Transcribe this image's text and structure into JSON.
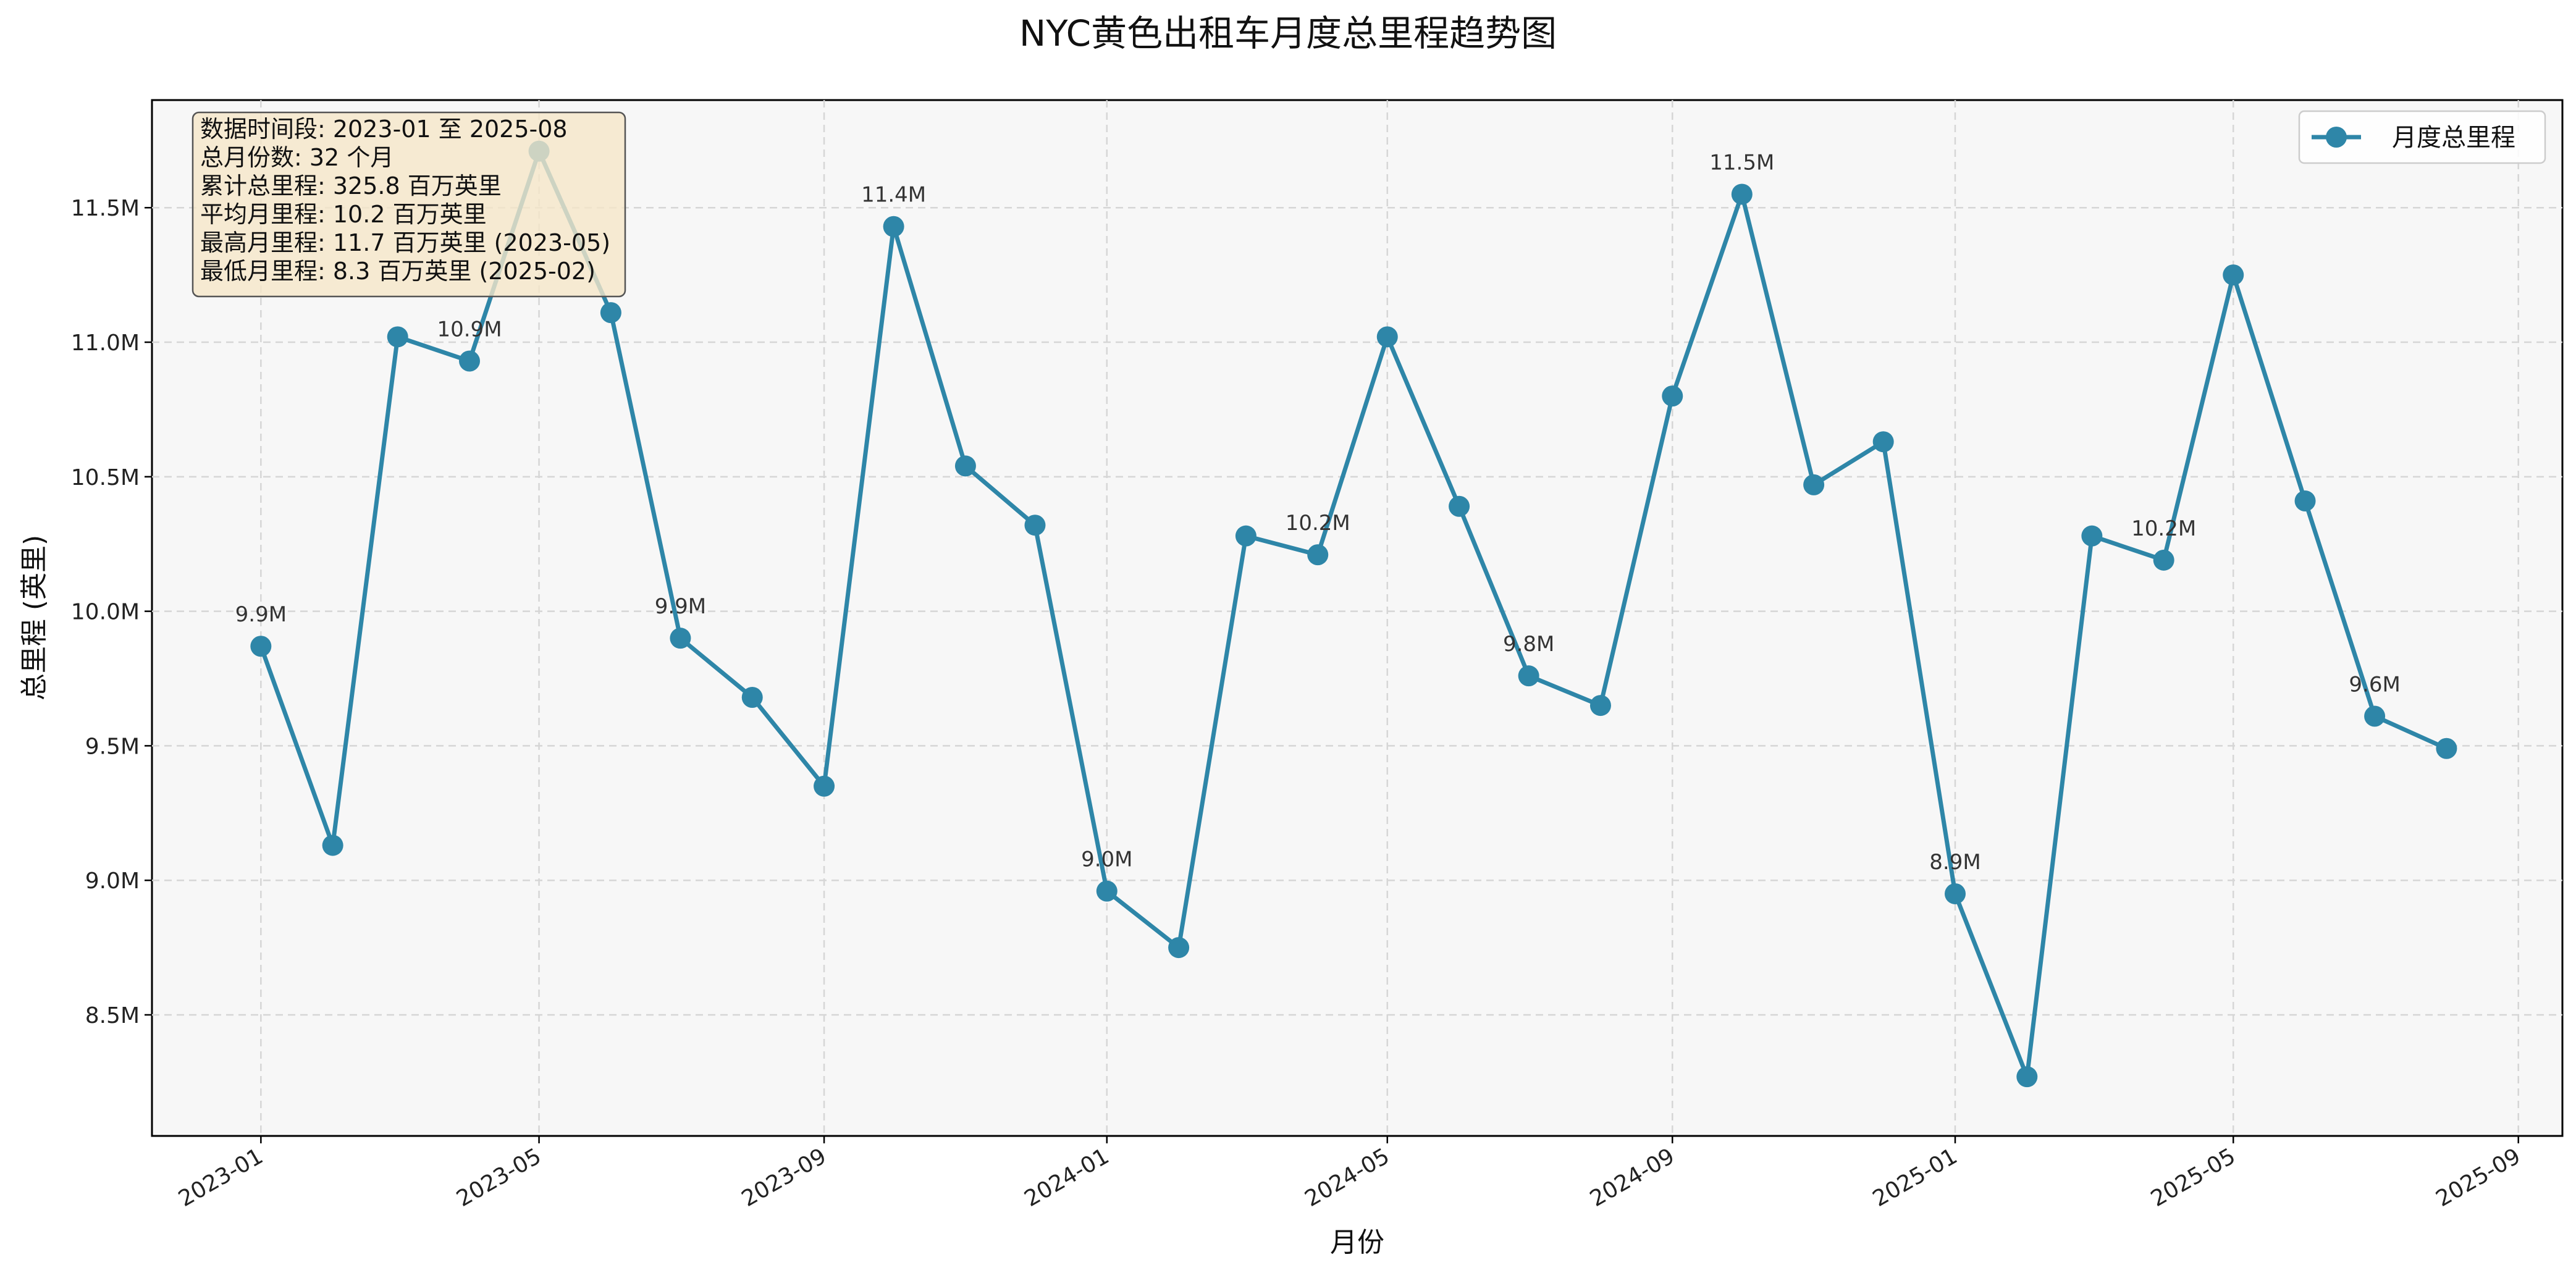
{
  "chart_data": {
    "type": "line",
    "title": "NYC黄色出租车月度总里程趋势图",
    "xlabel": "月份",
    "ylabel": "总里程 (英里)",
    "x_tick_labels": [
      "2023-01",
      "2023-05",
      "2023-09",
      "2024-01",
      "2024-05",
      "2024-09",
      "2025-01",
      "2025-05",
      "2025-09"
    ],
    "y_tick_labels": [
      "8.5M",
      "9.0M",
      "9.5M",
      "10.0M",
      "10.5M",
      "11.0M",
      "11.5M"
    ],
    "y_ticks": [
      8.5,
      9.0,
      9.5,
      10.0,
      10.5,
      11.0,
      11.5
    ],
    "ylim": [
      8.05,
      11.9
    ],
    "xlim": [
      "2022-11-15",
      "2025-09-20"
    ],
    "y_unit": "millions of miles",
    "x": [
      "2023-01",
      "2023-02",
      "2023-03",
      "2023-04",
      "2023-05",
      "2023-06",
      "2023-07",
      "2023-08",
      "2023-09",
      "2023-10",
      "2023-11",
      "2023-12",
      "2024-01",
      "2024-02",
      "2024-03",
      "2024-04",
      "2024-05",
      "2024-06",
      "2024-07",
      "2024-08",
      "2024-09",
      "2024-10",
      "2024-11",
      "2024-12",
      "2025-01",
      "2025-02",
      "2025-03",
      "2025-04",
      "2025-05",
      "2025-06",
      "2025-07",
      "2025-08"
    ],
    "series": [
      {
        "name": "月度总里程",
        "color": "#2e86a8",
        "values": [
          9.87,
          9.13,
          11.02,
          10.93,
          11.71,
          11.11,
          9.9,
          9.68,
          9.35,
          11.43,
          10.54,
          10.32,
          8.96,
          8.75,
          10.28,
          10.21,
          11.02,
          10.39,
          9.76,
          9.65,
          10.8,
          11.55,
          10.47,
          10.63,
          8.95,
          8.27,
          10.28,
          10.19,
          11.25,
          10.41,
          9.61,
          9.49
        ]
      }
    ],
    "annotations": [
      {
        "index": 0,
        "text": "9.9M"
      },
      {
        "index": 3,
        "text": "10.9M"
      },
      {
        "index": 6,
        "text": "9.9M"
      },
      {
        "index": 9,
        "text": "11.4M"
      },
      {
        "index": 12,
        "text": "9.0M"
      },
      {
        "index": 15,
        "text": "10.2M"
      },
      {
        "index": 18,
        "text": "9.8M"
      },
      {
        "index": 21,
        "text": "11.5M"
      },
      {
        "index": 24,
        "text": "8.9M"
      },
      {
        "index": 27,
        "text": "10.2M"
      },
      {
        "index": 30,
        "text": "9.6M"
      }
    ],
    "legend": {
      "label": "月度总里程",
      "position": "top-right"
    },
    "info_box": {
      "position": "top-left",
      "lines": [
        "数据时间段: 2023-01 至 2025-08",
        "总月份数: 32 个月",
        "累计总里程: 325.8 百万英里",
        "平均月里程: 10.2 百万英里",
        "最高月里程: 11.7 百万英里 (2023-05)",
        "最低月里程: 8.3 百万英里 (2025-02)"
      ]
    },
    "grid": true,
    "background_color": "#f7f7f7"
  }
}
